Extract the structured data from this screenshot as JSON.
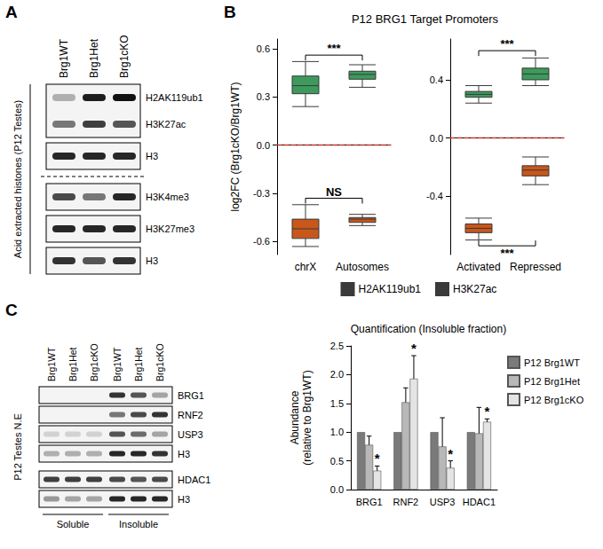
{
  "panel_labels": [
    "A",
    "B",
    "C"
  ],
  "blot_a": {
    "columns": [
      "Brg1WT",
      "Brg1Het",
      "Brg1cKO"
    ],
    "side_label": "Acid extracted histones (P12 Testes)",
    "sections": [
      [
        [
          {
            "label": "H2AK119ub1",
            "bands": [
              0.3,
              0.95,
              1.0
            ]
          },
          {
            "label": "H3K27ac",
            "bands": [
              0.55,
              0.8,
              0.7
            ]
          }
        ],
        [
          {
            "label": "H3",
            "bands": [
              0.9,
              0.9,
              0.9
            ]
          }
        ]
      ],
      [
        [
          {
            "label": "H3K4me3",
            "bands": [
              0.75,
              0.55,
              0.9
            ]
          }
        ],
        [
          {
            "label": "H3K27me3",
            "bands": [
              0.9,
              0.9,
              0.9
            ]
          }
        ],
        [
          {
            "label": "H3",
            "bands": [
              0.85,
              0.7,
              0.85
            ]
          }
        ]
      ]
    ]
  },
  "blot_c": {
    "columns": [
      "Brg1WT",
      "Brg1Het",
      "Brg1cKO",
      "Brg1WT",
      "Brg1Het",
      "Brg1cKO"
    ],
    "side_label": "P12 Testes N.E",
    "fractions": [
      "Soluble",
      "Insoluble"
    ],
    "sections": [
      [
        [
          {
            "label": "BRG1",
            "bands": [
              0,
              0,
              0,
              0.85,
              0.7,
              0.35
            ]
          }
        ],
        [
          {
            "label": "RNF2",
            "bands": [
              0,
              0,
              0,
              0.55,
              0.75,
              0.85
            ]
          }
        ],
        [
          {
            "label": "USP3",
            "bands": [
              0.15,
              0.15,
              0.15,
              0.7,
              0.6,
              0.35
            ]
          }
        ],
        [
          {
            "label": "H3",
            "bands": [
              0.3,
              0.3,
              0.3,
              0.9,
              0.9,
              0.85
            ]
          }
        ]
      ],
      [
        [
          {
            "label": "HDAC1",
            "bands": [
              0.8,
              0.8,
              0.8,
              0.75,
              0.7,
              0.75
            ]
          }
        ],
        [
          {
            "label": "H3",
            "bands": [
              0.4,
              0.35,
              0.35,
              0.9,
              0.9,
              0.9
            ]
          }
        ]
      ]
    ]
  },
  "chart_data": [
    {
      "type": "boxplot",
      "title": "P12 BRG1 Target Promoters",
      "ylabel": "log2FC (Brg1cKO/Brg1WT)",
      "categories": [
        "chrX",
        "Autosomes"
      ],
      "series": [
        {
          "name": "H2AK119ub1",
          "color": "#3d9a5c",
          "values": [
            [
              0.24,
              0.32,
              0.37,
              0.43,
              0.52
            ],
            [
              0.36,
              0.41,
              0.44,
              0.46,
              0.5
            ]
          ]
        },
        {
          "name": "H3K27ac",
          "color": "#c8571b",
          "values": [
            [
              -0.63,
              -0.58,
              -0.52,
              -0.46,
              -0.37
            ],
            [
              -0.5,
              -0.48,
              -0.46,
              -0.45,
              -0.43
            ]
          ]
        }
      ],
      "ylim": [
        -0.68,
        0.66
      ],
      "yticks": [
        -0.6,
        -0.3,
        {
          "value": 0,
          "label": "0.0"
        },
        0.3,
        0.6
      ],
      "hline": {
        "value": 0,
        "color": "#e0332b",
        "line_style": "dashed"
      },
      "annotations": [
        {
          "text": "***",
          "series": "H2AK119ub1",
          "between": [
            "chrX",
            "Autosomes"
          ],
          "y": 0.56
        },
        {
          "text": "NS",
          "series": "H3K27ac",
          "between": [
            "chrX",
            "Autosomes"
          ],
          "y": -0.33
        }
      ],
      "legend": "bottom",
      "grid": false
    },
    {
      "type": "boxplot",
      "categories": [
        "Activated",
        "Repressed"
      ],
      "series": [
        {
          "name": "H2AK119ub1",
          "color": "#3d9a5c",
          "values": [
            [
              0.24,
              0.28,
              0.3,
              0.32,
              0.36
            ],
            [
              0.36,
              0.4,
              0.44,
              0.48,
              0.55
            ]
          ]
        },
        {
          "name": "H3K27ac",
          "color": "#c8571b",
          "values": [
            [
              -0.7,
              -0.65,
              -0.62,
              -0.59,
              -0.55
            ],
            [
              -0.32,
              -0.26,
              -0.22,
              -0.19,
              -0.13
            ]
          ]
        }
      ],
      "ylim": [
        -0.8,
        0.68
      ],
      "yticks": [
        -0.4,
        {
          "value": 0,
          "label": "0.0"
        },
        0.4
      ],
      "hline": {
        "value": 0,
        "color": "#e0332b",
        "line_style": "dashed"
      },
      "annotations": [
        {
          "text": "***",
          "series": "H2AK119ub1",
          "between": [
            "Activated",
            "Repressed"
          ],
          "y": 0.6
        },
        {
          "text": "***",
          "series": "H3K27ac",
          "between": [
            "Activated",
            "Repressed"
          ],
          "y": -0.74
        }
      ],
      "grid": false
    },
    {
      "type": "bar",
      "title": "Quantification (Insoluble fraction)",
      "ylabel": "Abundance\n(relative to Brg1WT)",
      "categories": [
        "BRG1",
        "RNF2",
        "USP3",
        "HDAC1"
      ],
      "series": [
        {
          "name": "P12 Brg1WT",
          "color": "#7a7a7a",
          "values": [
            1,
            1,
            1,
            1
          ],
          "errors": [
            0,
            0,
            0,
            0
          ]
        },
        {
          "name": "P12 Brg1Het",
          "color": "#b8b8b8",
          "values": [
            0.78,
            1.52,
            0.75,
            0.98
          ],
          "errors": [
            0.15,
            0.25,
            0.5,
            0.45
          ]
        },
        {
          "name": "P12 Brg1cKO",
          "color": "#e4e4e4",
          "values": [
            0.33,
            1.93,
            0.38,
            1.18
          ],
          "errors": [
            0.08,
            0.4,
            0.12,
            0.05
          ]
        }
      ],
      "ylim": [
        0,
        2.5
      ],
      "yticks": [
        {
          "value": 0,
          "label": "0.0"
        },
        0.5,
        {
          "value": 1,
          "label": "1.0"
        },
        1.5,
        {
          "value": 2,
          "label": "2.0"
        },
        2.5
      ],
      "annotations": [
        {
          "text": "*",
          "series": "P12 Brg1cKO",
          "category": "BRG1"
        },
        {
          "text": "*",
          "series": "P12 Brg1cKO",
          "category": "RNF2"
        },
        {
          "text": "*",
          "series": "P12 Brg1cKO",
          "category": "USP3"
        },
        {
          "text": "*",
          "series": "P12 Brg1cKO",
          "category": "HDAC1"
        }
      ],
      "legend": "right",
      "grid": false
    }
  ]
}
